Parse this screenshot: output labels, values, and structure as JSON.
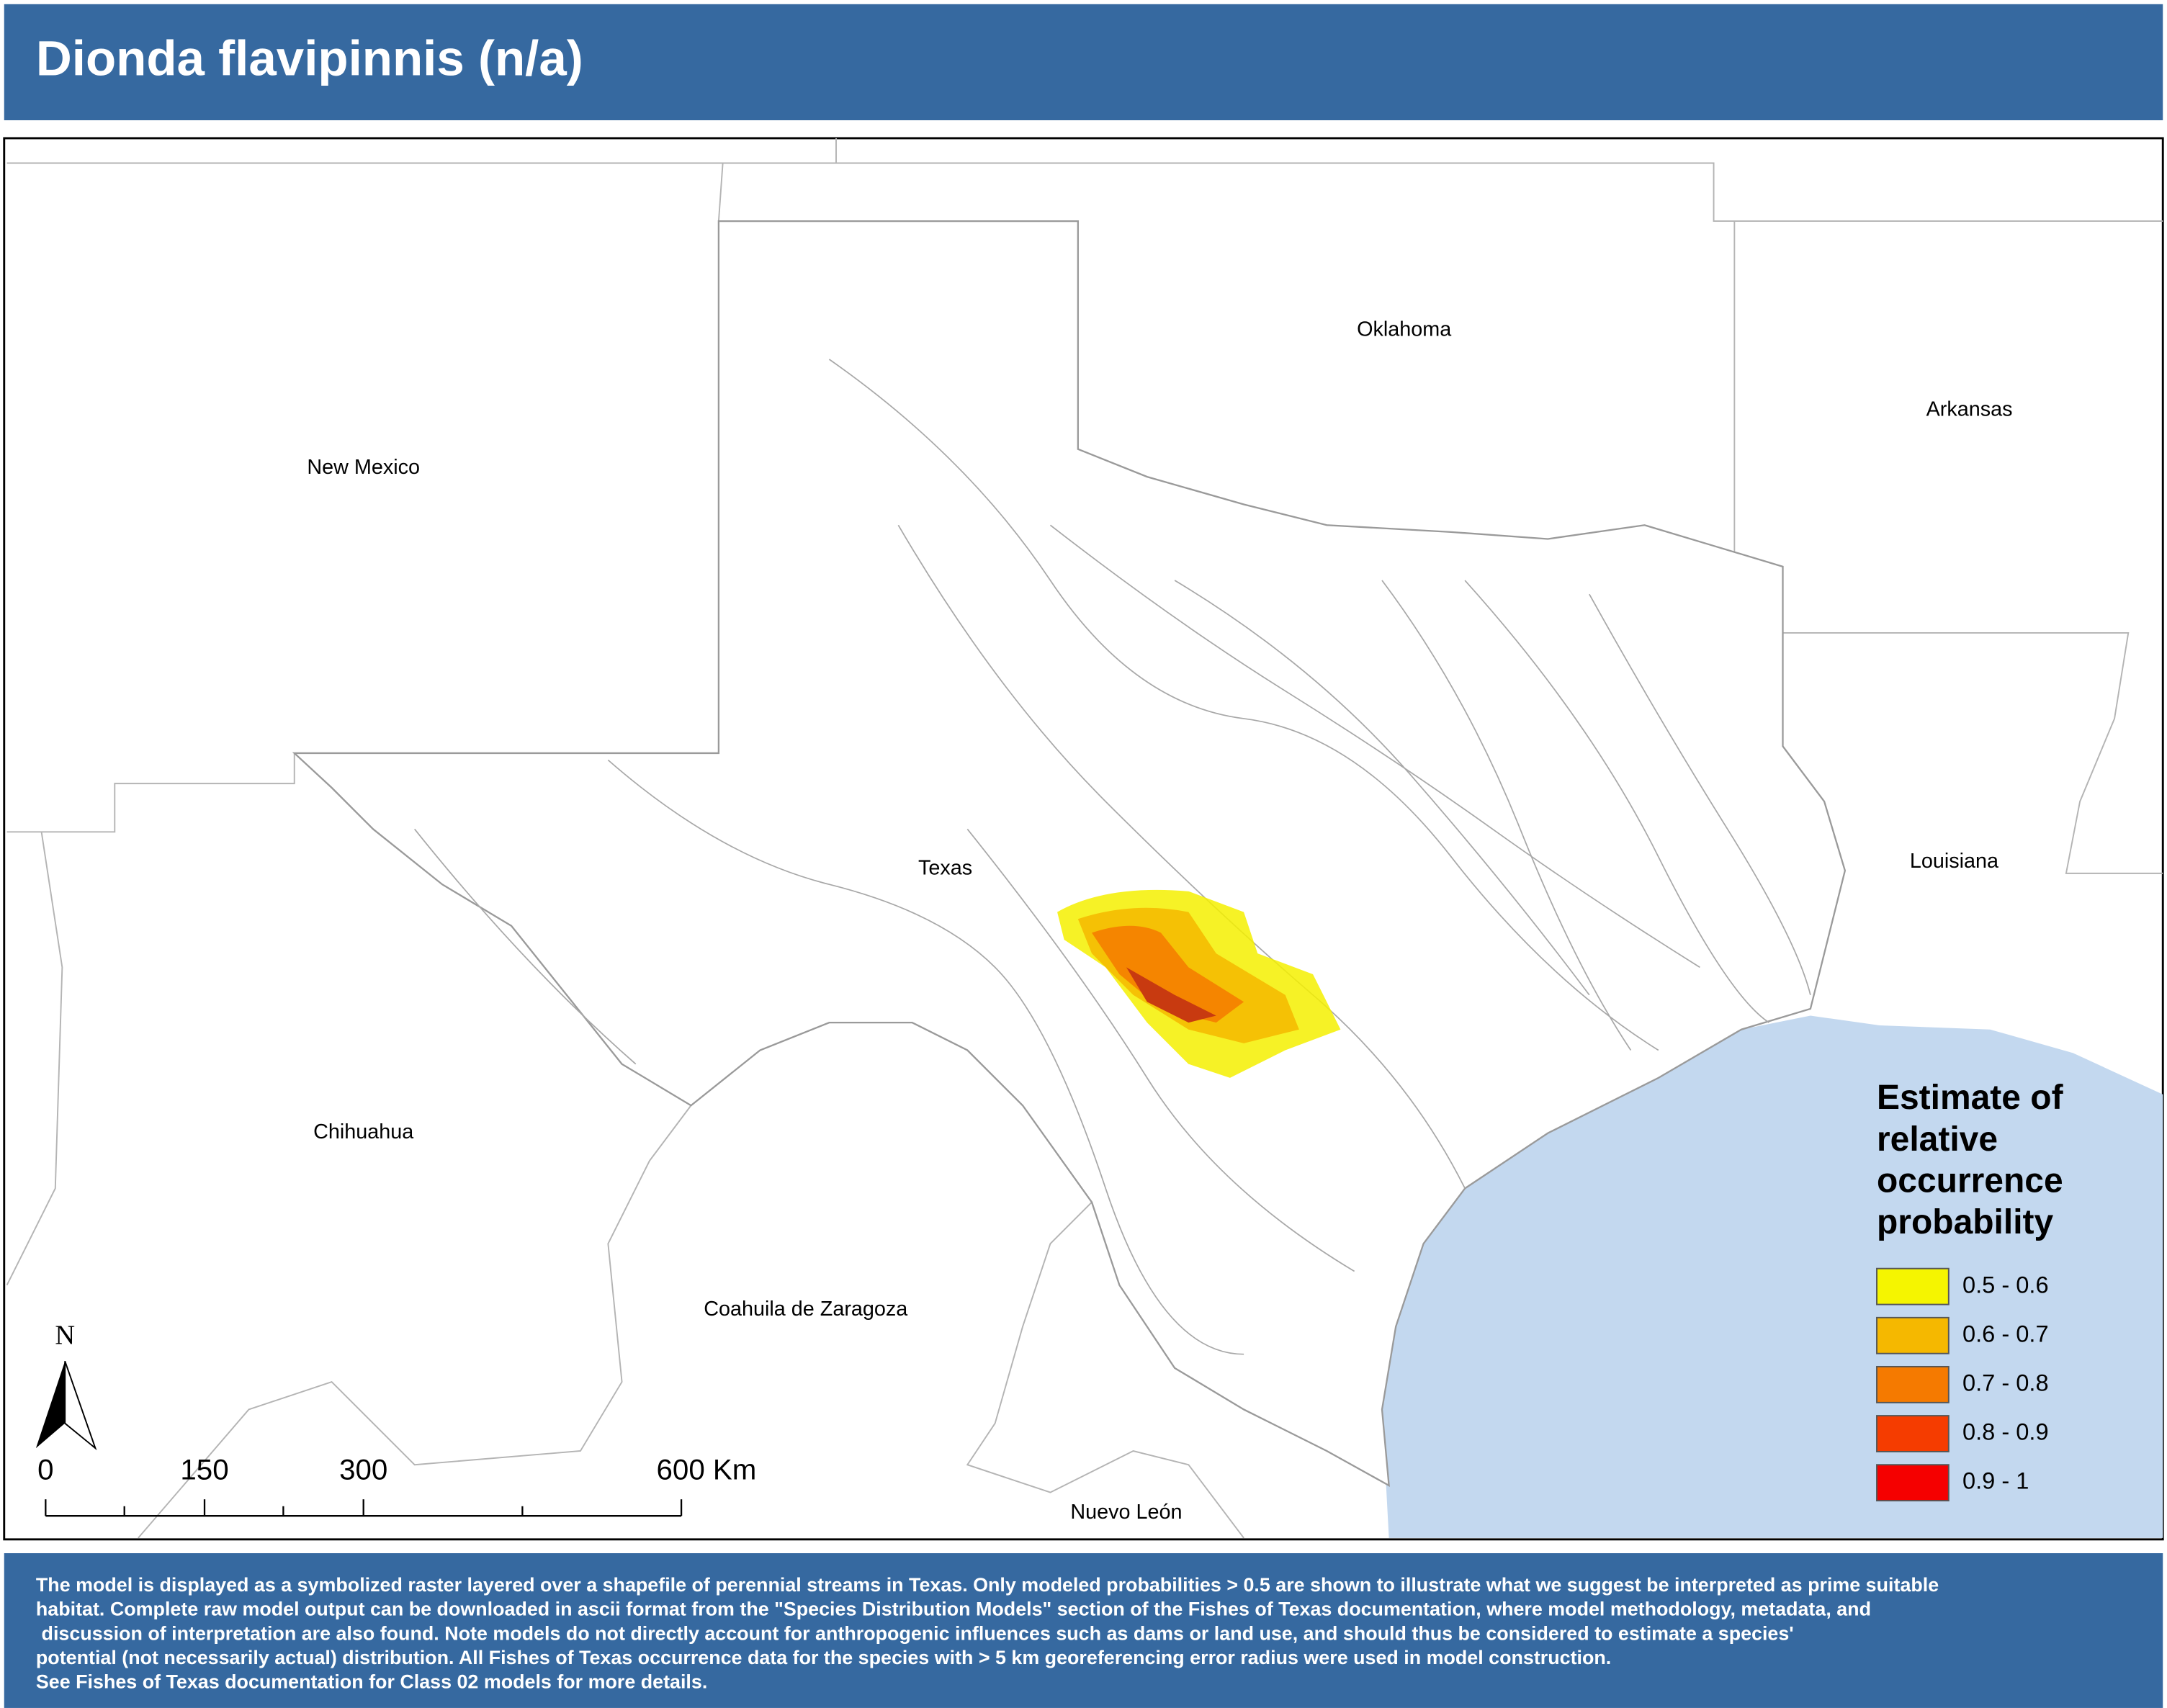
{
  "header": {
    "title": "Dionda flavipinnis (n/a)"
  },
  "map": {
    "labels": [
      {
        "text": "Oklahoma"
      },
      {
        "text": "Arkansas"
      },
      {
        "text": "New Mexico"
      },
      {
        "text": "Texas"
      },
      {
        "text": "Louisiana"
      },
      {
        "text": "Chihuahua"
      },
      {
        "text": "Coahuila de Zaragoza"
      },
      {
        "text": "Nuevo León"
      }
    ]
  },
  "legend": {
    "title": [
      "Estimate of",
      "relative",
      "occurrence",
      "probability"
    ],
    "items": [
      {
        "label": "0.5 - 0.6",
        "color": "#f5f500"
      },
      {
        "label": "0.6 - 0.7",
        "color": "#f5b800"
      },
      {
        "label": "0.7 - 0.8",
        "color": "#f57a00"
      },
      {
        "label": "0.8 - 0.9",
        "color": "#f53c00"
      },
      {
        "label": "0.9 - 1",
        "color": "#f50000"
      }
    ]
  },
  "north_arrow": {
    "label": "N"
  },
  "scale_bar": {
    "labels": [
      "0",
      "150",
      "300",
      "600 Km"
    ]
  },
  "footer": {
    "lines": [
      "The model is displayed as a symbolized raster layered over a shapefile of perennial streams in Texas. Only modeled probabilities > 0.5 are shown to illustrate what we suggest be interpreted as prime suitable",
      "habitat. Complete raw model output can be downloaded in ascii format from the \"Species Distribution Models\" section of the Fishes of Texas documentation, where model methodology, metadata, and",
      "discussion of interpretation are also found. Note models do not directly account for anthropogenic influences such as dams or land use, and should thus be considered to estimate a species'",
      "potential (not necessarily actual) distribution. All Fishes of Texas occurrence data for the species with > 5 km georeferencing error radius were used in model construction.",
      "See Fishes of Texas documentation for Class 02 models for more details."
    ]
  }
}
